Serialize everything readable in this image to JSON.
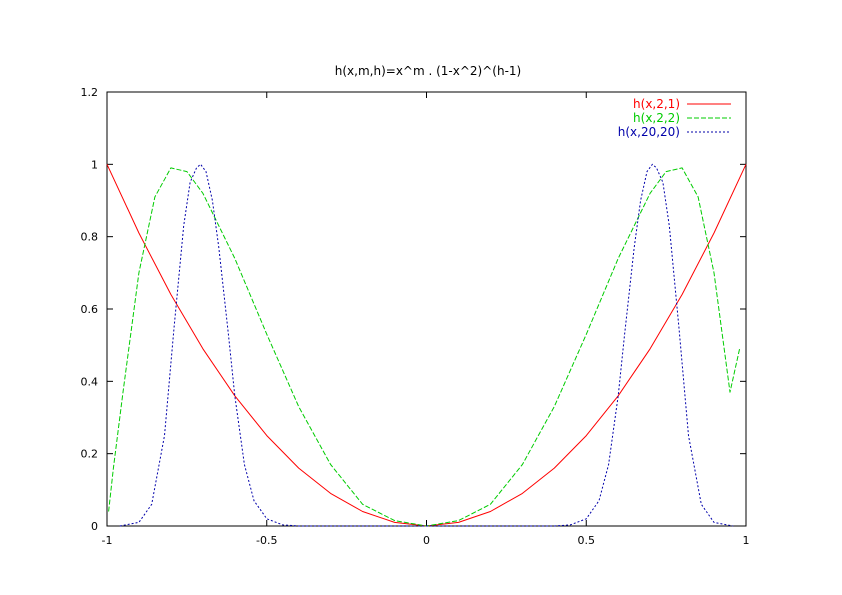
{
  "chart_data": {
    "type": "line",
    "title": "h(x,m,h)=x^m . (1-x^2)^(h-1)",
    "xlabel": "",
    "ylabel": "",
    "xlim": [
      -1,
      1
    ],
    "ylim": [
      0,
      1.2
    ],
    "xticks": [
      -1,
      -0.5,
      0,
      0.5,
      1
    ],
    "xtick_labels": [
      "-1",
      "-0.5",
      "0",
      "0.5",
      "1"
    ],
    "yticks": [
      0,
      0.2,
      0.4,
      0.6,
      0.8,
      1,
      1.2
    ],
    "ytick_labels": [
      "0",
      "0.2",
      "0.4",
      "0.6",
      "0.8",
      "1",
      "1.2"
    ],
    "grid": false,
    "legend_position": "top-right",
    "series": [
      {
        "name": "h(x,2,1)",
        "color": "#ff0000",
        "dash": "solid",
        "x": [
          -1.0,
          -0.9,
          -0.8,
          -0.7,
          -0.6,
          -0.5,
          -0.4,
          -0.3,
          -0.2,
          -0.1,
          0.0,
          0.1,
          0.2,
          0.3,
          0.4,
          0.5,
          0.6,
          0.7,
          0.8,
          0.9,
          1.0
        ],
        "y": [
          1.0,
          0.81,
          0.64,
          0.49,
          0.36,
          0.25,
          0.16,
          0.09,
          0.04,
          0.01,
          0.0,
          0.01,
          0.04,
          0.09,
          0.16,
          0.25,
          0.36,
          0.49,
          0.64,
          0.81,
          1.0
        ]
      },
      {
        "name": "h(x,2,2)",
        "color": "#00cc00",
        "dash": "long-dash",
        "x": [
          -0.995,
          -0.99,
          -0.98,
          -0.95,
          -0.9,
          -0.85,
          -0.8,
          -0.75,
          -0.7,
          -0.6,
          -0.5,
          -0.4,
          -0.3,
          -0.2,
          -0.1,
          0.0,
          0.1,
          0.2,
          0.3,
          0.4,
          0.5,
          0.6,
          0.7,
          0.75,
          0.8,
          0.85,
          0.9,
          0.95,
          0.98
        ],
        "y": [
          0.04,
          0.08,
          0.16,
          0.37,
          0.7,
          0.91,
          0.99,
          0.98,
          0.92,
          0.74,
          0.53,
          0.33,
          0.17,
          0.06,
          0.015,
          0.0,
          0.015,
          0.06,
          0.17,
          0.33,
          0.53,
          0.74,
          0.92,
          0.98,
          0.99,
          0.91,
          0.7,
          0.37,
          0.49
        ]
      },
      {
        "name": "h(x,20,20)",
        "color": "#0000aa",
        "dash": "short-dash",
        "x": [
          -0.96,
          -0.9,
          -0.86,
          -0.82,
          -0.79,
          -0.76,
          -0.74,
          -0.72,
          -0.707,
          -0.69,
          -0.67,
          -0.65,
          -0.62,
          -0.6,
          -0.57,
          -0.54,
          -0.5,
          -0.45,
          -0.4,
          0.0,
          0.4,
          0.45,
          0.5,
          0.54,
          0.57,
          0.6,
          0.62,
          0.65,
          0.67,
          0.69,
          0.707,
          0.72,
          0.74,
          0.76,
          0.79,
          0.82,
          0.86,
          0.9,
          0.96
        ],
        "y": [
          0.0,
          0.01,
          0.06,
          0.25,
          0.55,
          0.83,
          0.95,
          0.99,
          1.0,
          0.98,
          0.9,
          0.77,
          0.53,
          0.36,
          0.17,
          0.07,
          0.02,
          0.003,
          0.0,
          0.0,
          0.0,
          0.003,
          0.02,
          0.07,
          0.17,
          0.36,
          0.53,
          0.77,
          0.9,
          0.98,
          1.0,
          0.99,
          0.95,
          0.83,
          0.55,
          0.25,
          0.06,
          0.01,
          0.0
        ]
      }
    ]
  }
}
